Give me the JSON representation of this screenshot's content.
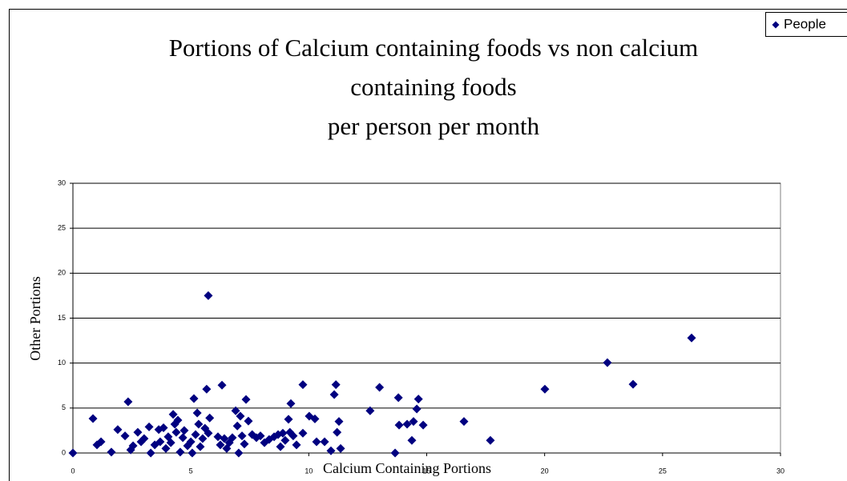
{
  "chart_data": {
    "type": "scatter",
    "title": [
      "Portions of Calcium containing foods vs  non calcium",
      "containing foods",
      "per person per month"
    ],
    "x_label": "Calcium Containing Portions",
    "y_label": "Other Portions",
    "xlim": [
      0,
      30
    ],
    "xticks": [
      0,
      5,
      10,
      15,
      20,
      25,
      30
    ],
    "ylim": [
      0,
      30
    ],
    "yticks": [
      0,
      5,
      10,
      15,
      20,
      25,
      30
    ],
    "grid": true,
    "legend": "top-right",
    "series": [
      {
        "name": "People",
        "color": "#000080",
        "x": [
          0,
          0.85,
          1.02,
          1.19,
          1.63,
          1.9,
          2.21,
          2.34,
          2.45,
          2.55,
          2.75,
          2.89,
          3.02,
          3.23,
          3.3,
          3.47,
          3.64,
          3.7,
          3.84,
          3.94,
          4.04,
          4.15,
          4.25,
          4.32,
          4.38,
          4.45,
          4.55,
          4.66,
          4.72,
          4.86,
          5.0,
          5.06,
          5.13,
          5.2,
          5.27,
          5.33,
          5.4,
          5.5,
          5.6,
          5.67,
          5.74,
          5.8,
          5.74,
          6.15,
          6.25,
          6.32,
          6.42,
          6.52,
          6.63,
          6.76,
          6.9,
          6.97,
          7.03,
          7.1,
          7.17,
          7.27,
          7.34,
          7.44,
          7.6,
          7.78,
          7.95,
          8.12,
          8.32,
          8.53,
          8.7,
          8.8,
          8.9,
          9.0,
          9.14,
          9.2,
          9.24,
          9.34,
          9.48,
          9.75,
          9.75,
          10.02,
          10.26,
          10.33,
          10.67,
          10.94,
          11.08,
          11.15,
          11.2,
          11.28,
          11.35,
          12.6,
          13.0,
          13.66,
          13.8,
          13.83,
          14.17,
          14.37,
          14.44,
          14.58,
          14.65,
          14.85,
          16.58,
          17.7,
          20.01,
          22.66,
          23.75,
          26.23
        ],
        "values": [
          0,
          3.83,
          0.9,
          1.25,
          0.1,
          2.6,
          1.9,
          5.7,
          0.35,
          0.8,
          2.3,
          1.25,
          1.6,
          2.9,
          0,
          0.9,
          2.6,
          1.25,
          2.8,
          0.5,
          1.8,
          1.15,
          4.3,
          3.2,
          2.3,
          3.65,
          0.1,
          1.7,
          2.5,
          0.8,
          1.25,
          0,
          6.05,
          2.05,
          4.45,
          3.2,
          0.7,
          1.6,
          2.75,
          7.1,
          17.5,
          3.9,
          2.2,
          1.8,
          0.9,
          7.55,
          1.6,
          0.5,
          1.15,
          1.7,
          4.7,
          3.0,
          0,
          4.1,
          1.9,
          1.0,
          5.95,
          3.55,
          2.05,
          1.7,
          1.9,
          1.15,
          1.5,
          1.8,
          2.05,
          0.7,
          2.2,
          1.4,
          3.75,
          2.3,
          5.5,
          1.9,
          0.9,
          2.2,
          7.6,
          4.1,
          3.8,
          1.25,
          1.25,
          0.25,
          6.5,
          7.6,
          2.3,
          3.5,
          0.5,
          4.7,
          7.3,
          0,
          6.15,
          3.1,
          3.2,
          1.4,
          3.5,
          4.9,
          6.0,
          3.1,
          3.5,
          1.4,
          7.1,
          10.05,
          7.65,
          12.8
        ]
      }
    ]
  }
}
